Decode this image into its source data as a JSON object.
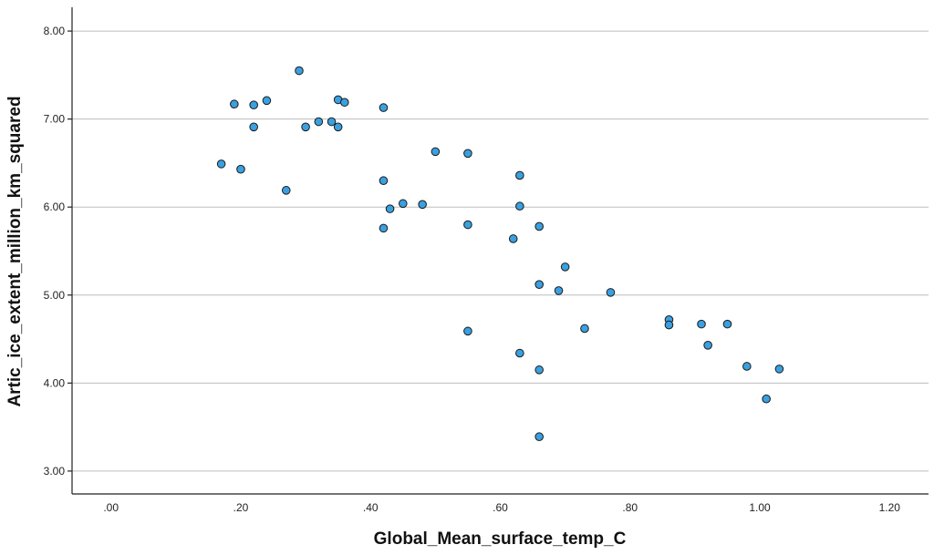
{
  "chart_data": {
    "type": "scatter",
    "title": "",
    "xlabel": "Global_Mean_surface_temp_C",
    "ylabel": "Artic_ice_extent_million_km_squared",
    "xlim": [
      -0.06,
      1.26
    ],
    "ylim": [
      2.74,
      8.27
    ],
    "x_ticks": [
      0.0,
      0.2,
      0.4,
      0.6,
      0.8,
      1.0,
      1.2
    ],
    "x_tick_labels": [
      ".00",
      ".20",
      ".40",
      ".60",
      ".80",
      "1.00",
      "1.20"
    ],
    "y_ticks": [
      3.0,
      4.0,
      5.0,
      6.0,
      7.0,
      8.0
    ],
    "y_tick_labels": [
      "3.00",
      "4.00",
      "5.00",
      "6.00",
      "7.00",
      "8.00"
    ],
    "grid": "horizontal",
    "marker_color": "#3aa0e0",
    "marker_edge_color": "#1a1a1a",
    "x": [
      0.17,
      0.19,
      0.2,
      0.22,
      0.22,
      0.24,
      0.27,
      0.29,
      0.3,
      0.32,
      0.34,
      0.35,
      0.35,
      0.36,
      0.42,
      0.42,
      0.42,
      0.43,
      0.45,
      0.48,
      0.5,
      0.55,
      0.55,
      0.55,
      0.62,
      0.63,
      0.63,
      0.63,
      0.66,
      0.66,
      0.66,
      0.66,
      0.69,
      0.7,
      0.73,
      0.77,
      0.86,
      0.86,
      0.91,
      0.92,
      0.95,
      0.98,
      1.01,
      1.03
    ],
    "y": [
      6.49,
      7.17,
      6.43,
      7.16,
      6.91,
      7.21,
      6.19,
      7.55,
      6.91,
      6.97,
      6.97,
      7.22,
      6.91,
      7.19,
      7.13,
      6.3,
      5.76,
      5.98,
      6.04,
      6.03,
      6.63,
      6.61,
      5.8,
      4.59,
      5.64,
      6.36,
      6.01,
      4.34,
      5.78,
      5.12,
      4.15,
      3.39,
      5.05,
      5.32,
      4.62,
      5.03,
      4.72,
      4.66,
      4.67,
      4.43,
      4.67,
      4.19,
      3.82,
      4.16
    ]
  }
}
